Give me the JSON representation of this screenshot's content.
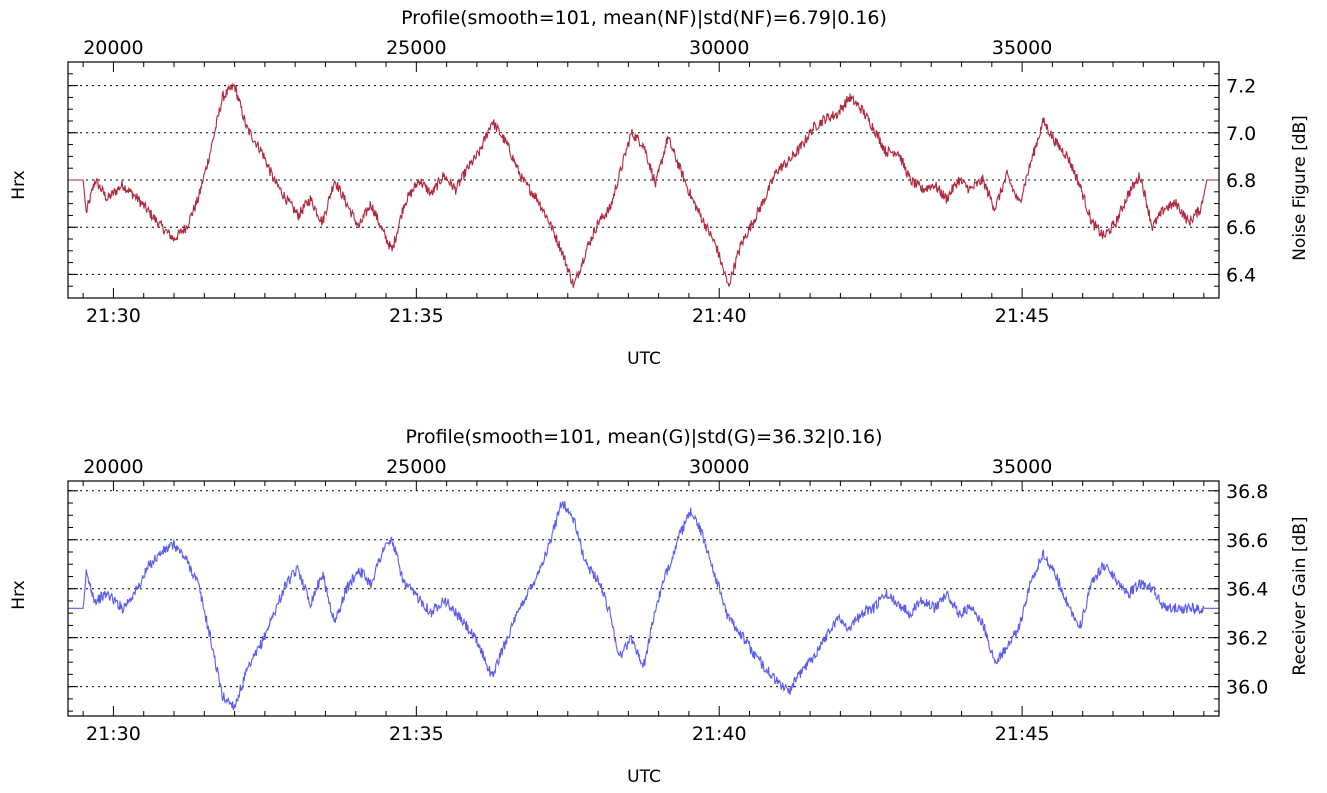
{
  "chart_data": [
    {
      "type": "line",
      "title": "Profile(smooth=101, mean(NF)|std(NF)=6.79|0.16)",
      "xlabel": "UTC",
      "ylabel_left": "Hrx",
      "ylabel_right": "Noise Figure [dB]",
      "x_bottom_ticks": [
        "21:30",
        "21:35",
        "21:40",
        "21:45"
      ],
      "x_top_ticks": [
        "20000",
        "25000",
        "30000",
        "35000"
      ],
      "y_ticks": [
        "6.4",
        "6.6",
        "6.8",
        "7.0",
        "7.2"
      ],
      "xlim_minutes": [
        -0.75,
        18.25
      ],
      "ylim": [
        6.3,
        7.3
      ],
      "grid": "horizontal dotted",
      "color": "#b0283c",
      "series": [
        {
          "x": [
            -0.5,
            -0.45,
            -0.3,
            -0.1,
            0.15,
            0.4,
            0.6,
            0.8,
            1.0,
            1.2,
            1.4,
            1.6,
            1.8,
            2.0,
            2.2,
            2.45,
            2.65,
            2.85,
            3.05,
            3.25,
            3.45,
            3.65,
            3.85,
            4.05,
            4.25,
            4.45,
            4.6,
            4.8,
            5.05,
            5.25,
            5.45,
            5.65,
            5.85,
            6.05,
            6.25,
            6.5,
            6.75,
            7.0,
            7.2,
            7.4,
            7.6,
            7.8,
            8.0,
            8.2,
            8.35,
            8.55,
            8.75,
            8.95,
            9.15,
            9.35,
            9.55,
            9.75,
            9.95,
            10.15,
            10.35,
            10.55,
            10.75,
            10.95,
            11.15,
            11.35,
            11.55,
            11.75,
            11.95,
            12.15,
            12.35,
            12.55,
            12.75,
            12.95,
            13.15,
            13.35,
            13.55,
            13.75,
            13.95,
            14.15,
            14.35,
            14.55,
            14.75,
            14.95,
            15.15,
            15.35,
            15.55,
            15.75,
            15.95,
            16.15,
            16.35,
            16.55,
            16.75,
            16.95,
            17.15,
            17.35,
            17.55,
            17.75,
            17.95,
            18.05,
            18.1
          ],
          "y": [
            6.8,
            6.66,
            6.8,
            6.72,
            6.78,
            6.72,
            6.66,
            6.6,
            6.55,
            6.6,
            6.72,
            6.92,
            7.15,
            7.2,
            7.02,
            6.92,
            6.8,
            6.72,
            6.65,
            6.72,
            6.62,
            6.8,
            6.7,
            6.6,
            6.7,
            6.58,
            6.5,
            6.7,
            6.8,
            6.74,
            6.82,
            6.76,
            6.85,
            6.92,
            7.05,
            6.95,
            6.8,
            6.72,
            6.62,
            6.5,
            6.35,
            6.5,
            6.62,
            6.68,
            6.82,
            7.0,
            6.95,
            6.78,
            6.98,
            6.85,
            6.72,
            6.62,
            6.52,
            6.35,
            6.52,
            6.62,
            6.72,
            6.84,
            6.88,
            6.94,
            7.02,
            7.06,
            7.08,
            7.15,
            7.1,
            7.02,
            6.92,
            6.92,
            6.8,
            6.76,
            6.78,
            6.72,
            6.8,
            6.76,
            6.8,
            6.68,
            6.82,
            6.7,
            6.88,
            7.05,
            6.96,
            6.9,
            6.78,
            6.62,
            6.56,
            6.62,
            6.74,
            6.82,
            6.6,
            6.68,
            6.7,
            6.62,
            6.68,
            6.8,
            6.8
          ]
        }
      ]
    },
    {
      "type": "line",
      "title": "Profile(smooth=101, mean(G)|std(G)=36.32|0.16)",
      "xlabel": "UTC",
      "ylabel_left": "Hrx",
      "ylabel_right": "Receiver Gain [dB]",
      "x_bottom_ticks": [
        "21:30",
        "21:35",
        "21:40",
        "21:45"
      ],
      "x_top_ticks": [
        "20000",
        "25000",
        "30000",
        "35000"
      ],
      "y_ticks": [
        "36.0",
        "36.2",
        "36.4",
        "36.6",
        "36.8"
      ],
      "xlim_minutes": [
        -0.75,
        18.25
      ],
      "ylim": [
        35.88,
        36.84
      ],
      "grid": "horizontal dotted",
      "color": "#5b5bf0",
      "series": [
        {
          "x": [
            -0.5,
            -0.45,
            -0.3,
            -0.1,
            0.15,
            0.4,
            0.6,
            0.8,
            1.0,
            1.2,
            1.4,
            1.6,
            1.8,
            2.0,
            2.2,
            2.45,
            2.65,
            2.85,
            3.05,
            3.25,
            3.45,
            3.65,
            3.85,
            4.05,
            4.25,
            4.45,
            4.6,
            4.8,
            5.05,
            5.25,
            5.45,
            5.65,
            5.85,
            6.05,
            6.25,
            6.5,
            6.75,
            7.0,
            7.2,
            7.4,
            7.6,
            7.8,
            8.0,
            8.2,
            8.35,
            8.55,
            8.75,
            8.95,
            9.15,
            9.35,
            9.55,
            9.75,
            9.95,
            10.15,
            10.35,
            10.55,
            10.75,
            10.95,
            11.15,
            11.35,
            11.55,
            11.75,
            11.95,
            12.15,
            12.35,
            12.55,
            12.75,
            12.95,
            13.15,
            13.35,
            13.55,
            13.75,
            13.95,
            14.15,
            14.35,
            14.55,
            14.75,
            14.95,
            15.15,
            15.35,
            15.55,
            15.75,
            15.95,
            16.15,
            16.35,
            16.55,
            16.75,
            16.95,
            17.15,
            17.35,
            17.55,
            17.75,
            17.95,
            18.05,
            18.1
          ],
          "y": [
            36.32,
            36.46,
            36.35,
            36.38,
            36.32,
            36.4,
            36.5,
            36.55,
            36.58,
            36.52,
            36.42,
            36.2,
            35.96,
            35.92,
            36.06,
            36.18,
            36.3,
            36.42,
            36.48,
            36.34,
            36.46,
            36.26,
            36.4,
            36.48,
            36.42,
            36.56,
            36.6,
            36.42,
            36.36,
            36.3,
            36.36,
            36.3,
            36.24,
            36.16,
            36.04,
            36.2,
            36.34,
            36.46,
            36.58,
            36.76,
            36.68,
            36.5,
            36.44,
            36.3,
            36.12,
            36.2,
            36.08,
            36.32,
            36.48,
            36.62,
            36.72,
            36.6,
            36.44,
            36.28,
            36.22,
            36.14,
            36.08,
            36.02,
            35.98,
            36.06,
            36.12,
            36.2,
            36.28,
            36.24,
            36.3,
            36.32,
            36.38,
            36.34,
            36.3,
            36.36,
            36.32,
            36.38,
            36.3,
            36.32,
            36.26,
            36.1,
            36.16,
            36.24,
            36.44,
            36.54,
            36.46,
            36.34,
            36.24,
            36.42,
            36.5,
            36.44,
            36.38,
            36.42,
            36.4,
            36.32,
            36.32,
            36.32,
            36.32,
            36.32,
            36.32
          ]
        }
      ]
    }
  ]
}
